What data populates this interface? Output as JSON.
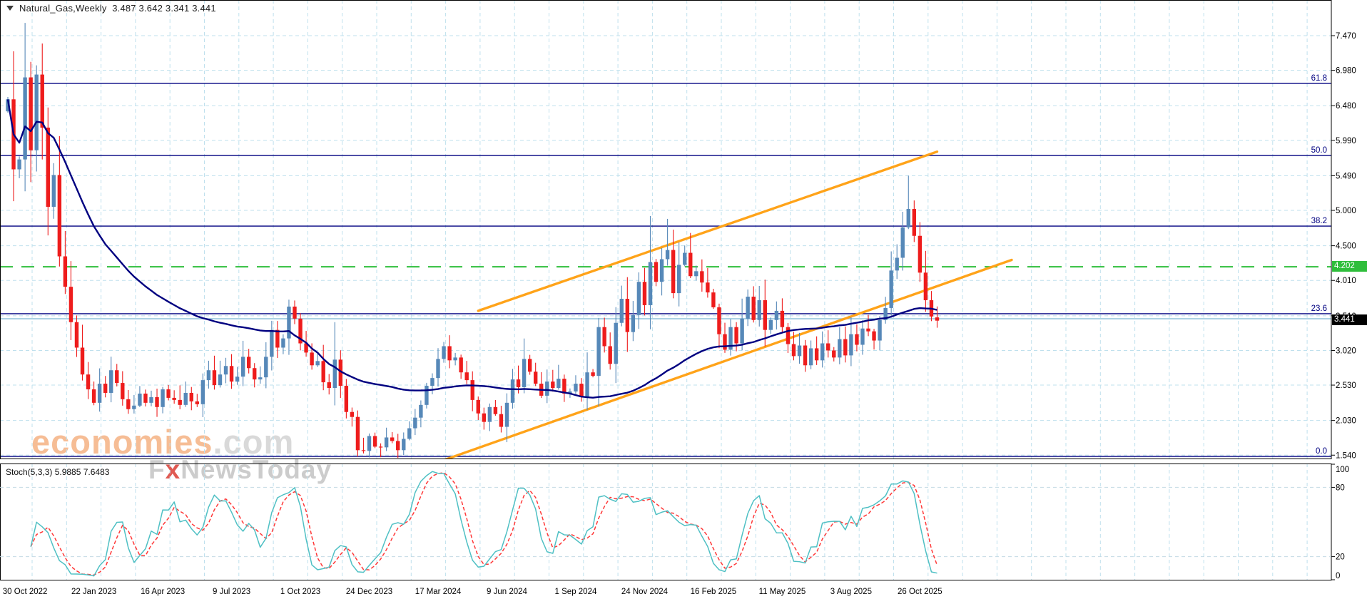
{
  "window_title": {
    "symbol": "Natural_Gas,Weekly",
    "ohlc_display": "3.487 3.642 3.341 3.441"
  },
  "watermark": {
    "line1_brand": "economies",
    "line1_suffix": ".com",
    "line2_prefix": "F",
    "line2_x": "x",
    "line2_rest": "NewsToday"
  },
  "price_scale": {
    "ticks": [
      7.47,
      6.98,
      6.48,
      5.99,
      5.49,
      5.0,
      4.5,
      4.01,
      3.51,
      3.02,
      2.53,
      2.03,
      1.54
    ],
    "green_label": "4.202",
    "current_label": "3.441"
  },
  "indicator_panel": {
    "label": "Stoch(5,3,3) 5.9885 7.6483",
    "scale_labels": [
      100,
      80,
      20,
      0
    ],
    "level_lines": [
      80,
      20
    ],
    "k_color": "#4fc0c4",
    "d_color": "#ff3838"
  },
  "colors": {
    "bull": "#5688b8",
    "bear": "#ee1c1c",
    "ma": "#000080",
    "fib": "#000080",
    "grid": "#bfe0ed",
    "channel": "#ffa319",
    "green_line": "#2fbe3b",
    "blue_line": "#8fc2da"
  },
  "chart_data": {
    "type": "candlestick",
    "symbol": "Natural_Gas",
    "timeframe": "Weekly",
    "last_bar": {
      "open": 3.487,
      "high": 3.642,
      "low": 3.341,
      "close": 3.441
    },
    "x_axis_labels": [
      "30 Oct 2022",
      "22 Jan 2023",
      "16 Apr 2023",
      "9 Jul 2023",
      "1 Oct 2023",
      "24 Dec 2023",
      "17 Mar 2024",
      "9 Jun 2024",
      "1 Sep 2024",
      "24 Nov 2024",
      "16 Feb 2025",
      "11 May 2025",
      "3 Aug 2025",
      "26 Oct 2025"
    ],
    "first_label_bar_index": 3,
    "bars_per_label": 12,
    "ylim": [
      1.49,
      7.97
    ],
    "grid": true,
    "weekly_closes": [
      6.57,
      5.58,
      5.72,
      6.88,
      5.85,
      6.92,
      6.17,
      5.05,
      5.5,
      4.35,
      3.92,
      3.42,
      3.06,
      2.68,
      2.47,
      2.28,
      2.55,
      2.42,
      2.74,
      2.56,
      2.33,
      2.19,
      2.24,
      2.41,
      2.28,
      2.36,
      2.22,
      2.47,
      2.35,
      2.32,
      2.25,
      2.42,
      2.3,
      2.26,
      2.6,
      2.74,
      2.53,
      2.68,
      2.8,
      2.58,
      2.65,
      2.93,
      2.77,
      2.61,
      2.64,
      2.93,
      3.31,
      3.06,
      3.19,
      3.64,
      3.47,
      3.12,
      2.99,
      2.81,
      2.87,
      2.57,
      2.49,
      2.89,
      2.52,
      2.15,
      2.08,
      1.61,
      1.6,
      1.81,
      1.66,
      1.65,
      1.79,
      1.74,
      1.61,
      1.77,
      1.92,
      2.07,
      2.25,
      2.52,
      2.63,
      2.9,
      3.08,
      2.88,
      2.92,
      2.71,
      2.6,
      2.32,
      2.13,
      2.01,
      2.22,
      2.12,
      1.94,
      2.28,
      2.61,
      2.5,
      2.9,
      2.72,
      2.55,
      2.38,
      2.58,
      2.49,
      2.62,
      2.41,
      2.44,
      2.55,
      2.36,
      2.71,
      2.66,
      3.35,
      3.08,
      2.83,
      3.41,
      3.75,
      3.28,
      3.52,
      3.99,
      3.66,
      4.27,
      3.99,
      4.31,
      4.44,
      3.83,
      4.23,
      4.4,
      4.07,
      4.14,
      3.98,
      3.84,
      3.63,
      3.25,
      3.03,
      3.35,
      3.12,
      3.47,
      3.78,
      3.45,
      3.73,
      3.31,
      3.45,
      3.58,
      3.35,
      3.11,
      2.94,
      3.09,
      2.81,
      3.05,
      2.88,
      3.12,
      3.02,
      2.92,
      3.18,
      2.95,
      3.25,
      3.1,
      3.33,
      3.29,
      3.16,
      3.45,
      3.62,
      4.15,
      4.33,
      4.76,
      5.02,
      4.64,
      4.12,
      3.73,
      3.5,
      3.441
    ],
    "bar_overrides": {
      "1": {
        "h": 7.25
      },
      "3": {
        "h": 7.65
      },
      "4": {
        "h": 7.1
      },
      "5": {
        "h": 7.05
      },
      "57": {
        "h": 3.42
      },
      "61": {
        "l": 1.52
      },
      "68": {
        "l": 1.5
      },
      "86": {
        "l": 1.86
      },
      "103": {
        "h": 3.48
      },
      "112": {
        "h": 4.92
      },
      "115": {
        "h": 4.88
      },
      "156": {
        "h": 4.98
      },
      "157": {
        "h": 5.49
      },
      "162": {
        "o": 3.487,
        "h": 3.642,
        "l": 3.341,
        "c": 3.441
      }
    },
    "moving_average": {
      "period": 50,
      "color": "#000080"
    },
    "fibonacci_levels": [
      {
        "label": "61.8",
        "price": 6.795
      },
      {
        "label": "50.0",
        "price": 5.776
      },
      {
        "label": "38.2",
        "price": 4.778
      },
      {
        "label": "23.6",
        "price": 3.539
      },
      {
        "label": "0.0",
        "price": 1.522
      }
    ],
    "green_dashed_line": {
      "price": 4.202,
      "label": "4.202"
    },
    "light_blue_line": {
      "price": 3.468
    },
    "channel_lines": [
      {
        "name": "upper",
        "from": {
          "bar": 82,
          "price": 3.58
        },
        "to": {
          "bar": 162,
          "price": 5.83
        }
      },
      {
        "name": "lower",
        "from": {
          "bar": 76,
          "price": 1.47
        },
        "to": {
          "bar": 175,
          "price": 4.3
        }
      }
    ],
    "stochastic": {
      "k_period": 5,
      "slowing": 3,
      "d_period": 3,
      "range": [
        0,
        100
      ]
    }
  }
}
